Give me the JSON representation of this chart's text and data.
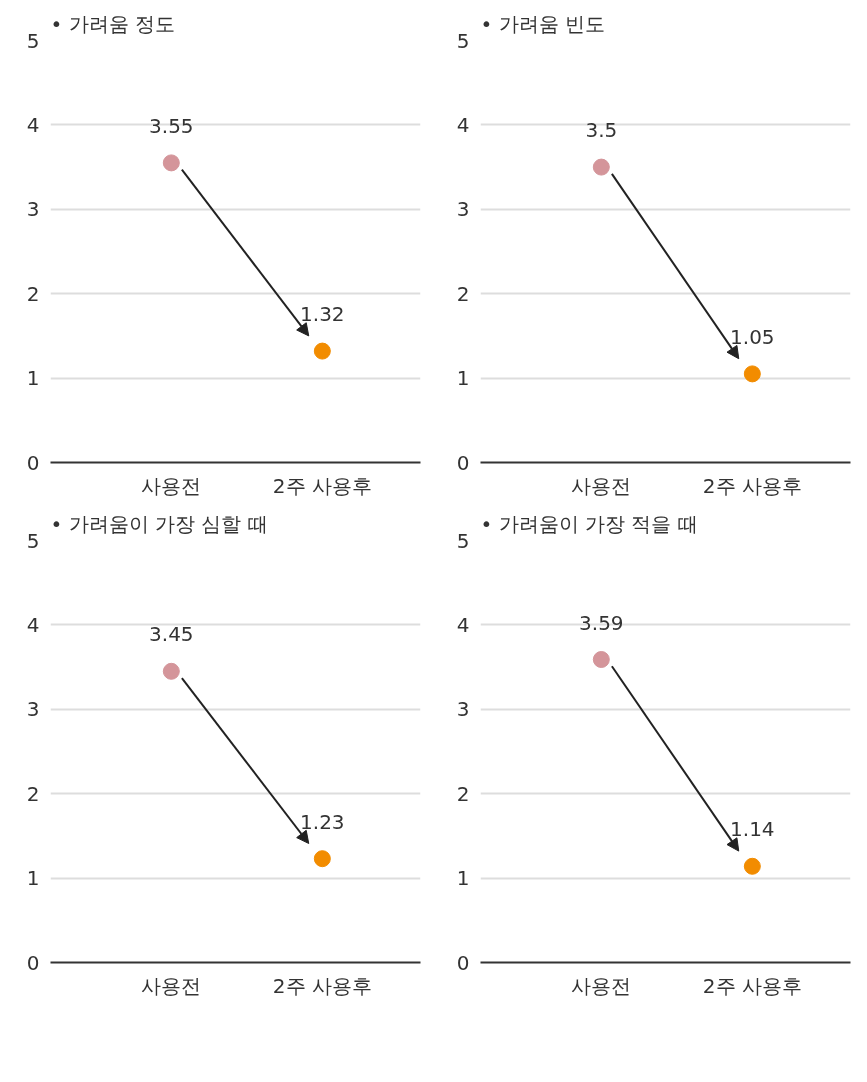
{
  "chart_data": [
    {
      "type": "scatter",
      "title": "• 가려움 정도",
      "categories": [
        "사용전",
        "2주 사용후"
      ],
      "values": [
        3.55,
        1.32
      ],
      "colors": [
        "#d4959a",
        "#f28c00"
      ],
      "ylim": [
        0,
        5
      ],
      "yticks": [
        0,
        1,
        2,
        3,
        4,
        5
      ],
      "grid": "y",
      "marker": "circle",
      "data_labels": true
    },
    {
      "type": "scatter",
      "title": "• 가려움 빈도",
      "categories": [
        "사용전",
        "2주 사용후"
      ],
      "values": [
        3.5,
        1.05
      ],
      "colors": [
        "#d4959a",
        "#f28c00"
      ],
      "ylim": [
        0,
        5
      ],
      "yticks": [
        0,
        1,
        2,
        3,
        4,
        5
      ],
      "grid": "y",
      "marker": "circle",
      "data_labels": true
    },
    {
      "type": "scatter",
      "title": "• 가려움이 가장 심할 때",
      "categories": [
        "사용전",
        "2주 사용후"
      ],
      "values": [
        3.45,
        1.23
      ],
      "colors": [
        "#d4959a",
        "#f28c00"
      ],
      "ylim": [
        0,
        5
      ],
      "yticks": [
        0,
        1,
        2,
        3,
        4,
        5
      ],
      "grid": "y",
      "marker": "circle",
      "data_labels": true
    },
    {
      "type": "scatter",
      "title": "• 가려움이 가장 적을 때",
      "categories": [
        "사용전",
        "2주 사용후"
      ],
      "values": [
        3.59,
        1.14
      ],
      "colors": [
        "#d4959a",
        "#f28c00"
      ],
      "ylim": [
        0,
        5
      ],
      "yticks": [
        0,
        1,
        2,
        3,
        4,
        5
      ],
      "grid": "y",
      "marker": "circle",
      "data_labels": true
    }
  ]
}
